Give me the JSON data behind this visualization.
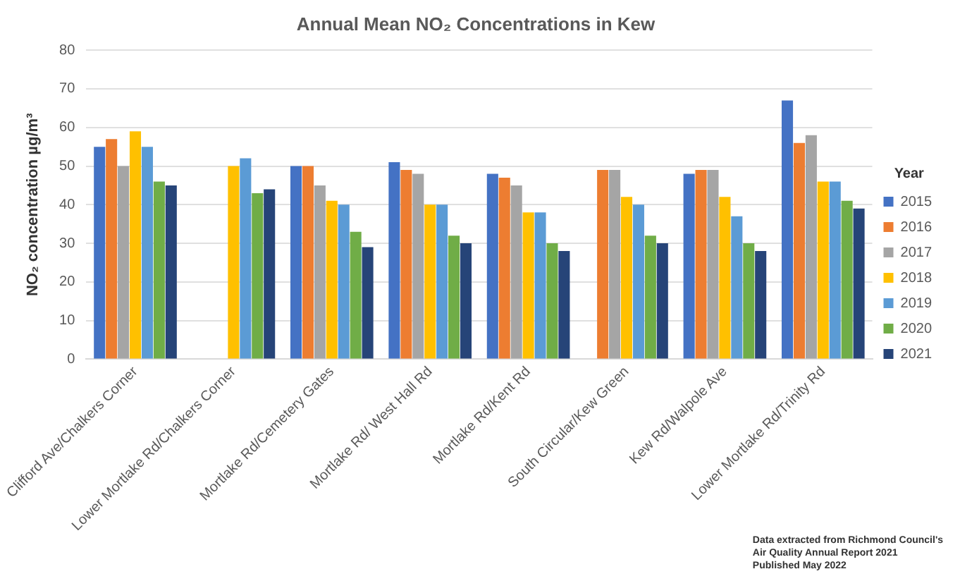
{
  "chart_data": {
    "type": "bar",
    "title": "Annual Mean NO₂ Concentrations in Kew",
    "ylabel": "NO₂ concentration µg/m³",
    "legend_title": "Year",
    "categories": [
      "Clifford Ave/Chalkers Corner",
      "Lower Mortlake Rd/Chalkers Corner",
      "Mortlake Rd/Cemetery Gates",
      "Mortlake Rd/ West Hall Rd",
      "Mortlake Rd/Kent Rd",
      "South Circular/Kew Green",
      "Kew Rd/Walpole Ave",
      "Lower Mortlake Rd/Trinity Rd"
    ],
    "series": [
      {
        "name": "2015",
        "color": "#4472c4",
        "values": [
          55,
          null,
          50,
          51,
          48,
          null,
          48,
          67
        ]
      },
      {
        "name": "2016",
        "color": "#ed7d31",
        "values": [
          57,
          null,
          50,
          49,
          47,
          49,
          49,
          56
        ]
      },
      {
        "name": "2017",
        "color": "#a5a5a5",
        "values": [
          50,
          null,
          45,
          48,
          45,
          49,
          49,
          58
        ]
      },
      {
        "name": "2018",
        "color": "#ffc000",
        "values": [
          59,
          50,
          41,
          40,
          38,
          42,
          42,
          46
        ]
      },
      {
        "name": "2019",
        "color": "#5b9bd5",
        "values": [
          55,
          52,
          40,
          40,
          38,
          40,
          37,
          46
        ]
      },
      {
        "name": "2020",
        "color": "#70ad47",
        "values": [
          46,
          43,
          33,
          32,
          30,
          32,
          30,
          41
        ]
      },
      {
        "name": "2021",
        "color": "#264478",
        "values": [
          45,
          44,
          29,
          30,
          28,
          30,
          28,
          39
        ]
      }
    ],
    "ylim": [
      0,
      80
    ],
    "yticks": [
      0,
      10,
      20,
      30,
      40,
      50,
      60,
      70,
      80
    ],
    "grid": "y",
    "legend": "right",
    "annotations": [
      "Data extracted from Richmond Council's",
      "Air Quality Annual Report 2021",
      "Published May 2022"
    ]
  }
}
